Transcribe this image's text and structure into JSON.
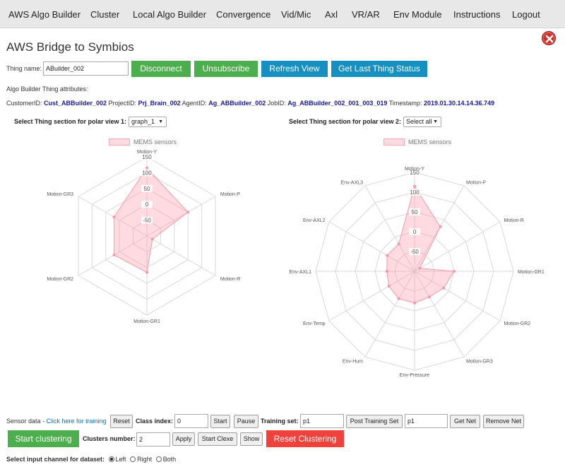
{
  "nav": {
    "items": [
      "AWS Algo Builder",
      "Cluster",
      "Local Algo Builder",
      "Convergence",
      "Vid/Mic",
      "Axl",
      "VR/AR",
      "Env Module",
      "Instructions",
      "Logout"
    ]
  },
  "header": {
    "title": "AWS Bridge to Symbios",
    "close_icon": "close-icon"
  },
  "thing": {
    "name_label": "Thing name:",
    "name_value": "ABuilder_002",
    "buttons": {
      "disconnect": "Disconnect",
      "unsubscribe": "Unsubscribe",
      "refresh": "Refresh View",
      "last_status": "Get Last Thing Status"
    }
  },
  "attributes": {
    "title": "Algo Builder Thing attributes:",
    "customer_label": "CustomerID:",
    "customer": "Cust_ABBuilder_002",
    "project_label": "ProjectID:",
    "project": "Prj_Brain_002",
    "agent_label": "AgentID:",
    "agent": "Ag_ABBuilder_002",
    "job_label": "JobID:",
    "job": "Ag_ABBuilder_002_001_003_019",
    "timestamp_label": "Timestamp:",
    "timestamp": "2019.01.30.14.14.36.749"
  },
  "polar1": {
    "label": "Select Thing section for polar view 1:",
    "selected": "graph_1"
  },
  "polar2": {
    "label": "Select Thing section for polar view 2:",
    "selected": "Select all"
  },
  "chart_data": [
    {
      "type": "radar",
      "legend": "MEMS sensors",
      "categories": [
        "Motion-Y",
        "Motion-P",
        "Motion-R",
        "Motion-GR1",
        "Motion-GR2",
        "Motion-GR3"
      ],
      "values": [
        115,
        50,
        -80,
        15,
        20,
        20
      ],
      "ticks": [
        150,
        100,
        50,
        0,
        -50
      ],
      "rlim": [
        -100,
        150
      ],
      "grid": true,
      "colors": {
        "fill": "rgba(255,150,170,0.35)",
        "stroke": "#f29aab",
        "grid": "#d9d9d9"
      }
    },
    {
      "type": "radar",
      "legend": "MEMS sensors",
      "categories": [
        "Motion-Y",
        "Motion-P",
        "Motion-R",
        "Motion-GR1",
        "Motion-GR2",
        "Motion-GR3",
        "Env-Pressure",
        "Env-Hum",
        "Env-Temp",
        "Env-AXL1",
        "Env-AXL2",
        "Env-AXL3"
      ],
      "values": [
        115,
        30,
        -85,
        0,
        -15,
        -25,
        -20,
        -20,
        -25,
        -30,
        -20,
        -20
      ],
      "ticks": [
        150,
        100,
        50,
        0,
        -50
      ],
      "rlim": [
        -100,
        150
      ],
      "grid": true,
      "colors": {
        "fill": "rgba(255,150,170,0.35)",
        "stroke": "#f29aab",
        "grid": "#d9d9d9"
      }
    }
  ],
  "sensor": {
    "label": "Sensor data -",
    "training_link": "Click here for training",
    "reset": "Reset",
    "class_label": "Class index:",
    "class_value": "0",
    "start": "Start",
    "pause": "Pause",
    "training_label": "Training set:",
    "training_value": "p1",
    "post_training": "Post Training Set",
    "net_value": "p1",
    "get_net": "Get Net",
    "remove_net": "Remove Net"
  },
  "clustering": {
    "start": "Start clustering",
    "clusters_label": "Clusters number:",
    "clusters_value": "2",
    "apply": "Apply",
    "start_clexe": "Start Clexe",
    "show": "Show",
    "reset": "Reset Clustering"
  },
  "channel": {
    "label": "Select input channel for dataset:",
    "options": [
      "Left",
      "Right",
      "Both"
    ],
    "selected": "Left"
  }
}
